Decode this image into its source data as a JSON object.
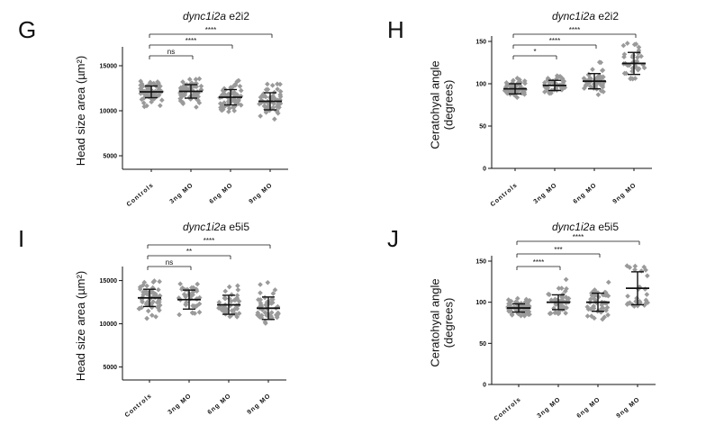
{
  "chart_data": [
    {
      "panel": "G",
      "type": "scatter",
      "title_gene": "dync1i2a",
      "title_suffix": " e2i2",
      "ylabel_lines": [
        "Head size area (µm²)"
      ],
      "ylim": [
        3500,
        16500
      ],
      "yticks": [
        5000,
        10000,
        15000
      ],
      "categories": [
        "Controls",
        "3ng MO",
        "6ng MO",
        "9ng MO"
      ],
      "groups": [
        {
          "n": 70,
          "mean": 12100,
          "sd": 650,
          "min": 10400,
          "max": 13700
        },
        {
          "n": 60,
          "mean": 12150,
          "sd": 750,
          "min": 10300,
          "max": 14000
        },
        {
          "n": 60,
          "mean": 11500,
          "sd": 850,
          "min": 9800,
          "max": 13400
        },
        {
          "n": 60,
          "mean": 11050,
          "sd": 950,
          "min": 8700,
          "max": 13200
        }
      ],
      "comparisons": [
        {
          "label": "ns",
          "from": 0,
          "to": 1
        },
        {
          "label": "****",
          "from": 0,
          "to": 2
        },
        {
          "label": "****",
          "from": 0,
          "to": 3
        }
      ]
    },
    {
      "panel": "H",
      "type": "scatter",
      "title_gene": "dync1i2a",
      "title_suffix": " e2i2",
      "ylabel_lines": [
        "Ceratohyal angle",
        "(degrees)"
      ],
      "ylim": [
        0,
        150
      ],
      "yticks": [
        0,
        50,
        100,
        150
      ],
      "categories": [
        "Controls",
        "3ng MO",
        "6ng MO",
        "9ng MO"
      ],
      "groups": [
        {
          "n": 55,
          "mean": 94,
          "sd": 6,
          "min": 82,
          "max": 112
        },
        {
          "n": 40,
          "mean": 98,
          "sd": 6,
          "min": 86,
          "max": 110
        },
        {
          "n": 45,
          "mean": 103,
          "sd": 9,
          "min": 85,
          "max": 127
        },
        {
          "n": 35,
          "mean": 124,
          "sd": 13,
          "min": 102,
          "max": 148
        }
      ],
      "comparisons": [
        {
          "label": "*",
          "from": 0,
          "to": 1
        },
        {
          "label": "****",
          "from": 0,
          "to": 2
        },
        {
          "label": "****",
          "from": 0,
          "to": 3
        }
      ]
    },
    {
      "panel": "I",
      "type": "scatter",
      "title_gene": "dync1i2a",
      "title_suffix": " e5i5",
      "ylabel_lines": [
        "Head size area (µm²)"
      ],
      "ylim": [
        3500,
        16000
      ],
      "yticks": [
        5000,
        10000,
        15000
      ],
      "categories": [
        "Controls",
        "3ng MO",
        "6ng MO",
        "9ng MO"
      ],
      "groups": [
        {
          "n": 55,
          "mean": 13000,
          "sd": 1000,
          "min": 10500,
          "max": 15000
        },
        {
          "n": 40,
          "mean": 12800,
          "sd": 1100,
          "min": 10800,
          "max": 15200
        },
        {
          "n": 40,
          "mean": 12200,
          "sd": 1100,
          "min": 10000,
          "max": 14500
        },
        {
          "n": 50,
          "mean": 11800,
          "sd": 1300,
          "min": 9200,
          "max": 14800
        }
      ],
      "comparisons": [
        {
          "label": "ns",
          "from": 0,
          "to": 1
        },
        {
          "label": "**",
          "from": 0,
          "to": 2
        },
        {
          "label": "****",
          "from": 0,
          "to": 3
        }
      ]
    },
    {
      "panel": "J",
      "type": "scatter",
      "title_gene": "dync1i2a",
      "title_suffix": " e5i5",
      "ylabel_lines": [
        "Ceratohyal angle",
        "(degrees)"
      ],
      "ylim": [
        0,
        150
      ],
      "yticks": [
        0,
        50,
        100,
        150
      ],
      "categories": [
        "Controls",
        "3ng MO",
        "6ng MO",
        "9ng MO"
      ],
      "groups": [
        {
          "n": 70,
          "mean": 93,
          "sd": 5,
          "min": 82,
          "max": 105
        },
        {
          "n": 45,
          "mean": 100,
          "sd": 9,
          "min": 86,
          "max": 128
        },
        {
          "n": 50,
          "mean": 100,
          "sd": 11,
          "min": 72,
          "max": 128
        },
        {
          "n": 30,
          "mean": 117,
          "sd": 20,
          "min": 95,
          "max": 145
        }
      ],
      "comparisons": [
        {
          "label": "****",
          "from": 0,
          "to": 1
        },
        {
          "label": "***",
          "from": 0,
          "to": 2
        },
        {
          "label": "****",
          "from": 0,
          "to": 3
        }
      ]
    }
  ]
}
